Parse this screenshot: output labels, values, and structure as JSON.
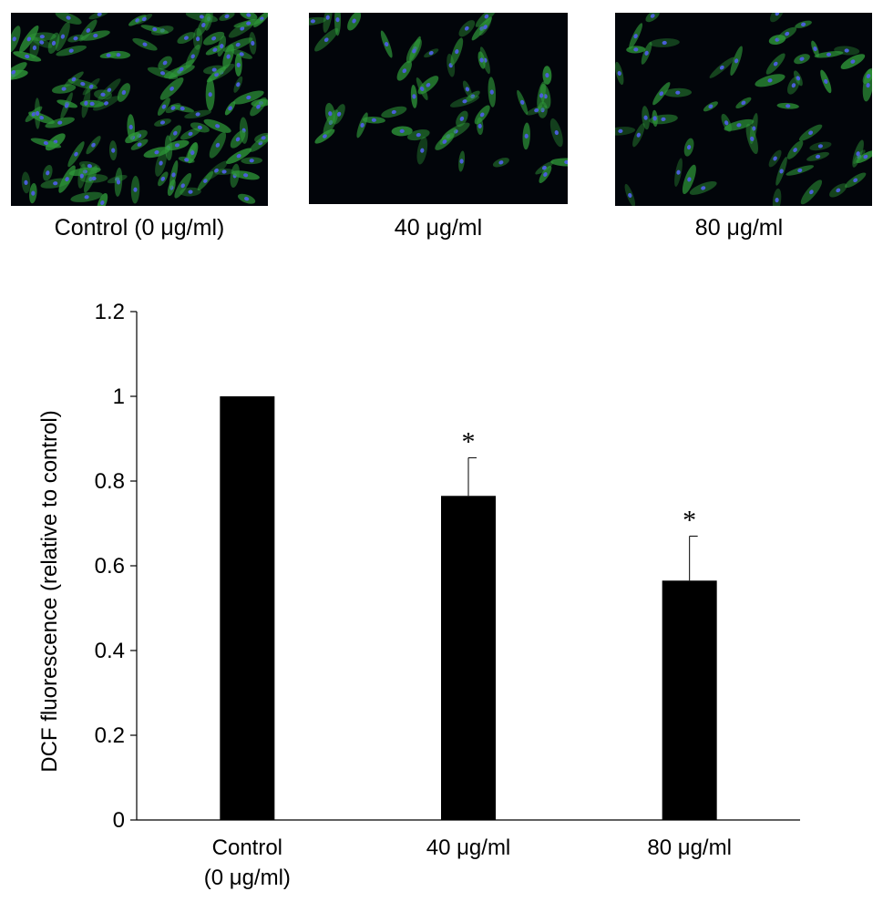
{
  "micrographs": {
    "panels": [
      {
        "caption": "Control (0 μg/ml)",
        "density": 1.0
      },
      {
        "caption": "40 μg/ml",
        "density": 0.55
      },
      {
        "caption": "80 μg/ml",
        "density": 0.45
      }
    ],
    "colors": {
      "background": "#02050a",
      "cytoplasm": "#2f9a3a",
      "nucleus": "#4a5ed8"
    }
  },
  "chart_data": {
    "type": "bar",
    "categories": [
      [
        "Control",
        "(0 μg/ml)"
      ],
      [
        "40 μg/ml"
      ],
      [
        "80 μg/ml"
      ]
    ],
    "values": [
      1.0,
      0.765,
      0.565
    ],
    "errors": [
      0,
      0.09,
      0.105
    ],
    "significance": [
      "",
      "*",
      "*"
    ],
    "ylabel": "DCF fluorescence (relative to control)",
    "ylim": [
      0,
      1.2
    ],
    "yticks": [
      0,
      0.2,
      0.4,
      0.6,
      0.8,
      1,
      1.2
    ],
    "ytick_labels": [
      "0",
      "0.2",
      "0.4",
      "0.6",
      "0.8",
      "1",
      "1.2"
    ],
    "bar_color": "#000000",
    "grid": false
  }
}
